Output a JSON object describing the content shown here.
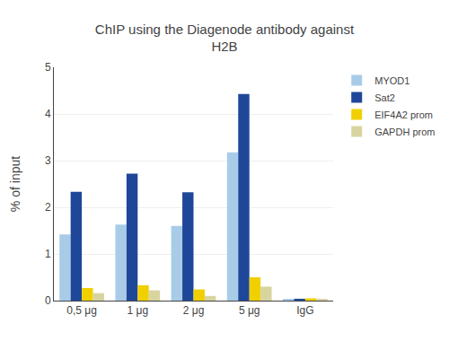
{
  "chart_data": {
    "type": "bar",
    "title": "ChIP using the Diagenode antibody against\nH2B",
    "ylabel": "% of input",
    "categories": [
      "0,5 μg",
      "1 μg",
      "2 μg",
      "5 μg",
      "IgG"
    ],
    "series": [
      {
        "name": "MYOD1",
        "color": "#a8cce8",
        "values": [
          1.42,
          1.63,
          1.6,
          3.18,
          0.02
        ]
      },
      {
        "name": "Sat2",
        "color": "#1f4799",
        "values": [
          2.33,
          2.72,
          2.32,
          4.43,
          0.04
        ]
      },
      {
        "name": "EIF4A2 prom",
        "color": "#f0d000",
        "values": [
          0.27,
          0.33,
          0.24,
          0.5,
          0.05
        ]
      },
      {
        "name": "GAPDH prom",
        "color": "#d8d4a0",
        "values": [
          0.16,
          0.22,
          0.1,
          0.3,
          0.02
        ]
      }
    ],
    "ylim": [
      0,
      5
    ],
    "yticks": [
      0,
      1,
      2,
      3,
      4,
      5
    ],
    "grid": true,
    "legend": "upper right"
  }
}
